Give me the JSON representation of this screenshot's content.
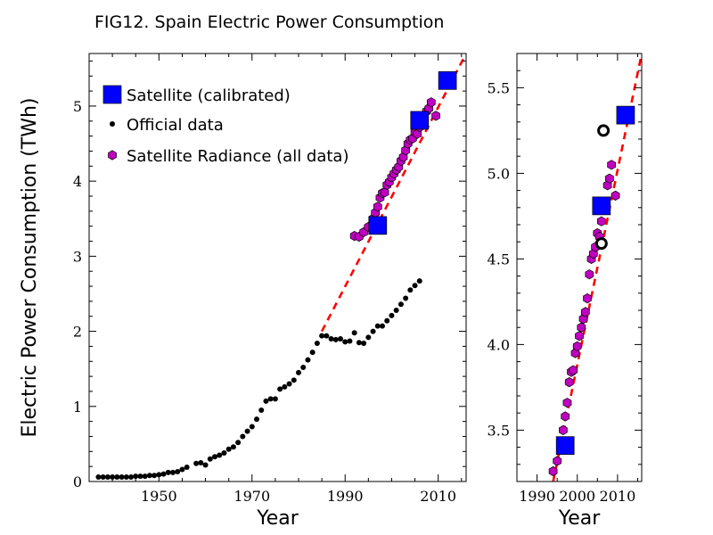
{
  "figure_title": "FIG12. Spain Electric Power Consumption",
  "chart_data": [
    {
      "type": "scatter",
      "panel": "main",
      "xlabel": "Year",
      "ylabel": "Electric Power Consumption (TWh)",
      "xlim": [
        1935,
        2016
      ],
      "ylim": [
        0,
        5.7
      ],
      "xticks": [
        1950,
        1970,
        1990,
        2010
      ],
      "yticks": [
        0,
        1,
        2,
        3,
        4,
        5
      ],
      "legend_position": "top-left",
      "series": [
        {
          "name": "Official data",
          "color": "#000000",
          "marker": "dot",
          "x": [
            1937,
            1938,
            1939,
            1940,
            1941,
            1942,
            1943,
            1944,
            1945,
            1946,
            1947,
            1948,
            1949,
            1950,
            1951,
            1952,
            1953,
            1954,
            1955,
            1956,
            1958,
            1959,
            1960,
            1961,
            1962,
            1963,
            1964,
            1965,
            1966,
            1967,
            1968,
            1969,
            1970,
            1971,
            1972,
            1973,
            1974,
            1975,
            1976,
            1977,
            1978,
            1979,
            1980,
            1981,
            1982,
            1983,
            1984,
            1985,
            1986,
            1987,
            1988,
            1989,
            1990,
            1991,
            1992,
            1993,
            1994,
            1995,
            1996,
            1997,
            1998,
            1999,
            2000,
            2001,
            2002,
            2003,
            2004,
            2005,
            2006
          ],
          "y": [
            0.06,
            0.06,
            0.06,
            0.06,
            0.06,
            0.06,
            0.06,
            0.06,
            0.07,
            0.07,
            0.07,
            0.08,
            0.08,
            0.09,
            0.1,
            0.12,
            0.12,
            0.13,
            0.16,
            0.19,
            0.24,
            0.25,
            0.22,
            0.3,
            0.33,
            0.35,
            0.38,
            0.43,
            0.46,
            0.52,
            0.6,
            0.67,
            0.73,
            0.83,
            0.95,
            1.07,
            1.1,
            1.1,
            1.23,
            1.26,
            1.3,
            1.35,
            1.45,
            1.52,
            1.62,
            1.72,
            1.84,
            1.94,
            1.94,
            1.9,
            1.89,
            1.9,
            1.86,
            1.87,
            1.98,
            1.85,
            1.84,
            1.92,
            2.0,
            2.07,
            2.07,
            2.14,
            2.21,
            2.28,
            2.36,
            2.44,
            2.55,
            2.61,
            2.67
          ]
        },
        {
          "name": "Satellite Radiance (all data)",
          "color": "#c000c0",
          "marker": "hexagon",
          "x": [
            1992,
            1993,
            1994,
            1995,
            1996,
            1996.5,
            1997,
            1997.5,
            1998,
            1998.5,
            1999,
            1999.5,
            2000,
            2000.5,
            2001,
            2001.5,
            2002,
            2002.5,
            2003,
            2003.5,
            2004,
            2004.5,
            2005,
            2005.5,
            2006,
            2006.5,
            2007,
            2007.5,
            2008,
            2008.5,
            2009.5
          ],
          "y": [
            3.27,
            3.26,
            3.32,
            3.39,
            3.5,
            3.58,
            3.66,
            3.78,
            3.84,
            3.85,
            3.95,
            3.99,
            4.05,
            4.1,
            4.15,
            4.19,
            4.27,
            4.32,
            4.41,
            4.5,
            4.55,
            4.57,
            4.65,
            4.63,
            4.72,
            4.82,
            4.81,
            4.93,
            4.97,
            5.05,
            4.87
          ]
        },
        {
          "name": "Satellite (calibrated)",
          "color": "#0000ff",
          "marker": "square",
          "x": [
            1997,
            2006,
            2012
          ],
          "y": [
            3.41,
            4.81,
            5.34
          ]
        },
        {
          "name": "",
          "color": "#ff0000",
          "marker": "dashed-line",
          "x": [
            1985,
            2016
          ],
          "y": [
            2.0,
            5.7
          ]
        }
      ]
    },
    {
      "type": "scatter",
      "panel": "zoom",
      "xlabel": "Year",
      "ylabel": "",
      "xlim": [
        1985,
        2016
      ],
      "ylim": [
        3.2,
        5.7
      ],
      "xticks": [
        1990,
        2000,
        2010
      ],
      "yticks": [
        3.5,
        4.0,
        4.5,
        5.0,
        5.5
      ],
      "series": [
        {
          "name": "Satellite Radiance (all data)",
          "color": "#c000c0",
          "marker": "hexagon",
          "x": [
            1994,
            1995,
            1996,
            1996.5,
            1997,
            1997.5,
            1998,
            1998.5,
            1999,
            1999.5,
            2000,
            2000.5,
            2001,
            2001.5,
            2002,
            2002.5,
            2003,
            2003.5,
            2004,
            2004.5,
            2005,
            2005.5,
            2006,
            2006.5,
            2007,
            2007.5,
            2008,
            2008.5,
            2009.5
          ],
          "y": [
            3.26,
            3.32,
            3.39,
            3.5,
            3.58,
            3.66,
            3.78,
            3.84,
            3.85,
            3.95,
            3.99,
            4.05,
            4.1,
            4.15,
            4.19,
            4.27,
            4.41,
            4.5,
            4.53,
            4.57,
            4.65,
            4.63,
            4.72,
            4.82,
            4.81,
            4.93,
            4.97,
            5.05,
            4.87
          ]
        },
        {
          "name": "Satellite (calibrated)",
          "color": "#0000ff",
          "marker": "square",
          "x": [
            1997,
            2006,
            2012
          ],
          "y": [
            3.41,
            4.81,
            5.34
          ]
        },
        {
          "name": "Official data",
          "color": "#000000",
          "marker": "ring",
          "x": [
            2006,
            2006.5
          ],
          "y": [
            4.59,
            5.25
          ]
        },
        {
          "name": "",
          "color": "#ff0000",
          "marker": "dashed-line",
          "x": [
            1994,
            2016
          ],
          "y": [
            3.2,
            5.7
          ]
        }
      ]
    }
  ]
}
